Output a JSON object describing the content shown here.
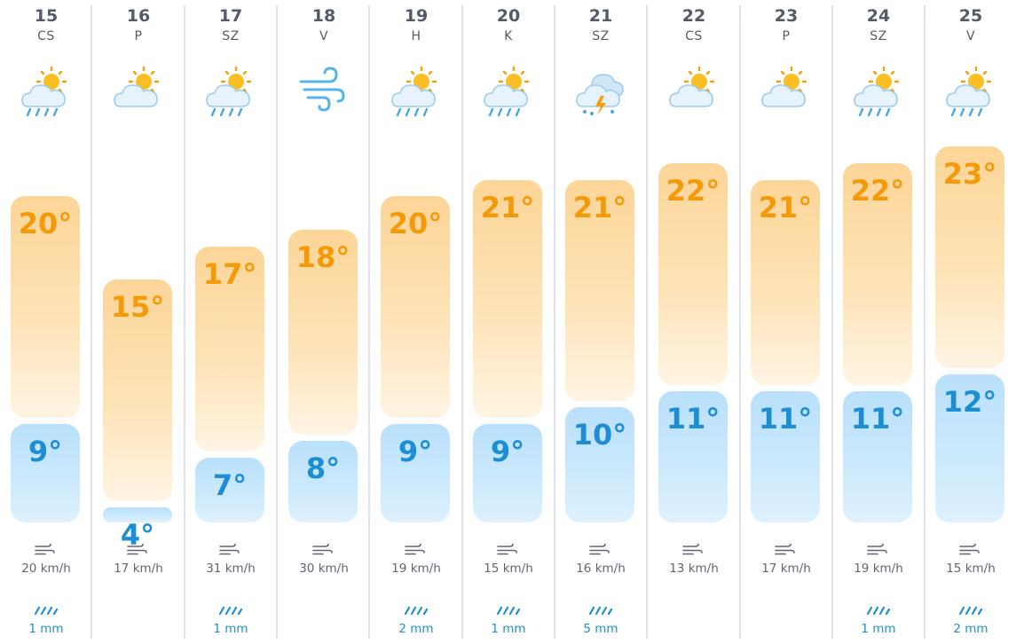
{
  "days": [
    {
      "date": "15",
      "dow": "CS",
      "icon": "rain-sun-icon",
      "high": "20°",
      "low": "9°",
      "high_value": 20,
      "low_value": 9,
      "wind": "20 km/h",
      "rain": "1 mm"
    },
    {
      "date": "16",
      "dow": "P",
      "icon": "partly-cloudy-icon",
      "high": "15°",
      "low": "4°",
      "high_value": 15,
      "low_value": 4,
      "wind": "17 km/h",
      "rain": ""
    },
    {
      "date": "17",
      "dow": "SZ",
      "icon": "rain-sun-icon",
      "high": "17°",
      "low": "7°",
      "high_value": 17,
      "low_value": 7,
      "wind": "31 km/h",
      "rain": "1 mm"
    },
    {
      "date": "18",
      "dow": "V",
      "icon": "wind-icon",
      "high": "18°",
      "low": "8°",
      "high_value": 18,
      "low_value": 8,
      "wind": "30 km/h",
      "rain": ""
    },
    {
      "date": "19",
      "dow": "H",
      "icon": "rain-sun-icon",
      "high": "20°",
      "low": "9°",
      "high_value": 20,
      "low_value": 9,
      "wind": "19 km/h",
      "rain": "2 mm"
    },
    {
      "date": "20",
      "dow": "K",
      "icon": "rain-sun-icon",
      "high": "21°",
      "low": "9°",
      "high_value": 21,
      "low_value": 9,
      "wind": "15 km/h",
      "rain": "1 mm"
    },
    {
      "date": "21",
      "dow": "SZ",
      "icon": "thunderstorm-icon",
      "high": "21°",
      "low": "10°",
      "high_value": 21,
      "low_value": 10,
      "wind": "16 km/h",
      "rain": "5 mm"
    },
    {
      "date": "22",
      "dow": "CS",
      "icon": "partly-cloudy-icon",
      "high": "22°",
      "low": "11°",
      "high_value": 22,
      "low_value": 11,
      "wind": "13 km/h",
      "rain": ""
    },
    {
      "date": "23",
      "dow": "P",
      "icon": "partly-cloudy-icon",
      "high": "21°",
      "low": "11°",
      "high_value": 21,
      "low_value": 11,
      "wind": "17 km/h",
      "rain": ""
    },
    {
      "date": "24",
      "dow": "SZ",
      "icon": "rain-sun-icon",
      "high": "22°",
      "low": "11°",
      "high_value": 22,
      "low_value": 11,
      "wind": "19 km/h",
      "rain": "1 mm"
    },
    {
      "date": "25",
      "dow": "V",
      "icon": "rain-sun-icon",
      "high": "23°",
      "low": "12°",
      "high_value": 23,
      "low_value": 12,
      "wind": "15 km/h",
      "rain": "2 mm"
    }
  ],
  "colors": {
    "high_text": "#f49a09",
    "low_text": "#1d8ed3",
    "separator": "#dbe2ea",
    "wind_text": "#5f6670",
    "rain_text": "#1d8ed3"
  }
}
